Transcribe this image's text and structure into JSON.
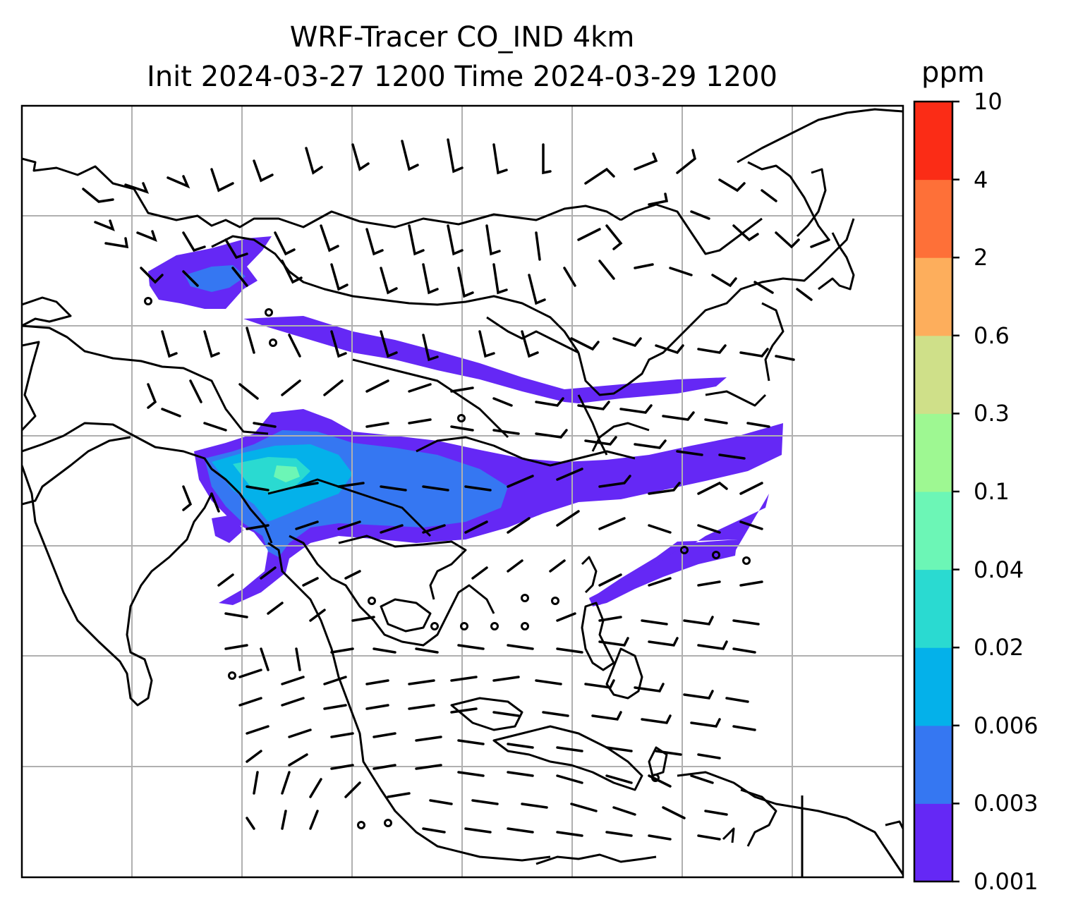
{
  "title": {
    "line1": "WRF-Tracer CO_IND 4km",
    "line2": "Init 2024-03-27 1200 Time 2024-03-29 1200"
  },
  "colorbar": {
    "unit": "ppm",
    "levels": [
      "0.001",
      "0.003",
      "0.006",
      "0.02",
      "0.04",
      "0.1",
      "0.3",
      "0.6",
      "2",
      "4",
      "10"
    ],
    "colors": [
      "#6528f5",
      "#3577f2",
      "#04b1ea",
      "#2adad1",
      "#6cf6b6",
      "#9ef892",
      "#cfe089",
      "#fdae5c",
      "#fe7038",
      "#fb2c16"
    ]
  },
  "map": {
    "background": "#ffffff",
    "gridlines": true,
    "coastline_color": "#000000",
    "barb_color": "#000000"
  }
}
